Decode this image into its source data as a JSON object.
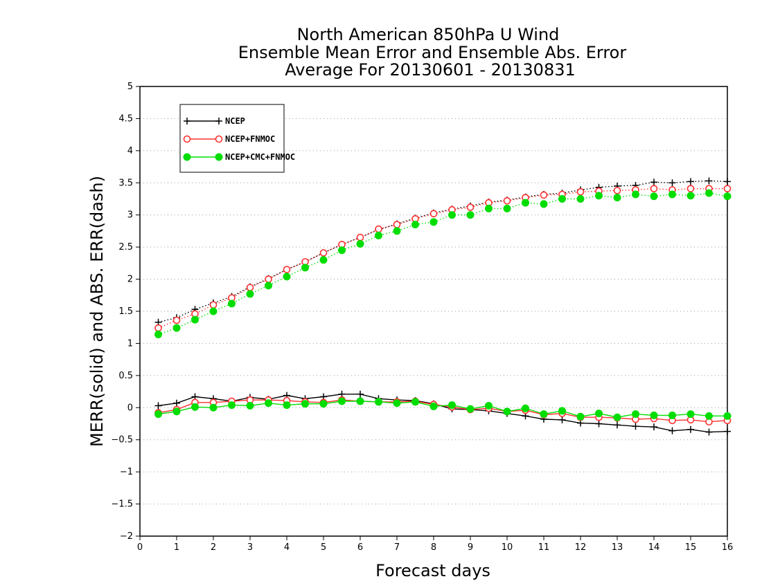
{
  "chart_data": {
    "type": "line",
    "title": [
      "North American 850hPa U Wind",
      "Ensemble Mean Error and Ensemble Abs. Error",
      "Average For 20130601 - 20130831"
    ],
    "xlabel": "Forecast days",
    "ylabel": "MERR(solid) and ABS. ERR(dash)",
    "xlim": [
      0,
      16
    ],
    "ylim": [
      -2,
      5
    ],
    "xticks": [
      "0",
      "1",
      "2",
      "3",
      "4",
      "5",
      "6",
      "7",
      "8",
      "9",
      "10",
      "11",
      "12",
      "13",
      "14",
      "15",
      "16"
    ],
    "yticks": [
      "−2",
      "−1.5",
      "−1",
      "−0.5",
      "0",
      "0.5",
      "1",
      "1.5",
      "2",
      "2.5",
      "3",
      "3.5",
      "4",
      "4.5",
      "5"
    ],
    "grid": "horizontal dotted",
    "legend_position": "top-left",
    "x": [
      0.5,
      1,
      1.5,
      2,
      2.5,
      3,
      3.5,
      4,
      4.5,
      5,
      5.5,
      6,
      6.5,
      7,
      7.5,
      8,
      8.5,
      9,
      9.5,
      10,
      10.5,
      11,
      11.5,
      12,
      12.5,
      13,
      13.5,
      14,
      14.5,
      15,
      15.5,
      16
    ],
    "series": [
      {
        "name": "NCEP",
        "color": "#000000",
        "marker": "plus",
        "abs_err": [
          1.33,
          1.4,
          1.53,
          1.63,
          1.73,
          1.88,
          2.01,
          2.15,
          2.27,
          2.41,
          2.54,
          2.65,
          2.77,
          2.86,
          2.95,
          3.03,
          3.09,
          3.14,
          3.2,
          3.23,
          3.28,
          3.32,
          3.34,
          3.39,
          3.43,
          3.45,
          3.46,
          3.51,
          3.5,
          3.52,
          3.53,
          3.52
        ],
        "mean_err": [
          0.03,
          0.07,
          0.17,
          0.14,
          0.1,
          0.16,
          0.13,
          0.19,
          0.14,
          0.17,
          0.21,
          0.21,
          0.14,
          0.12,
          0.11,
          0.06,
          -0.02,
          -0.03,
          -0.05,
          -0.09,
          -0.13,
          -0.18,
          -0.19,
          -0.24,
          -0.25,
          -0.27,
          -0.29,
          -0.3,
          -0.36,
          -0.34,
          -0.38,
          -0.37
        ]
      },
      {
        "name": "NCEP+FNMOC",
        "color": "#ff3030",
        "marker": "open-circle",
        "abs_err": [
          1.24,
          1.36,
          1.46,
          1.6,
          1.71,
          1.87,
          2.0,
          2.15,
          2.27,
          2.41,
          2.54,
          2.65,
          2.78,
          2.85,
          2.94,
          3.02,
          3.08,
          3.12,
          3.19,
          3.22,
          3.27,
          3.31,
          3.32,
          3.36,
          3.37,
          3.38,
          3.39,
          3.41,
          3.39,
          3.41,
          3.41,
          3.41
        ],
        "mean_err": [
          -0.08,
          -0.03,
          0.08,
          0.08,
          0.1,
          0.12,
          0.12,
          0.11,
          0.09,
          0.08,
          0.12,
          0.1,
          0.09,
          0.09,
          0.1,
          0.05,
          0.01,
          -0.03,
          -0.01,
          -0.06,
          -0.04,
          -0.11,
          -0.09,
          -0.15,
          -0.15,
          -0.16,
          -0.18,
          -0.17,
          -0.2,
          -0.19,
          -0.22,
          -0.2
        ]
      },
      {
        "name": "NCEP+CMC+FNMOC",
        "color": "#00dd00",
        "marker": "filled-circle",
        "abs_err": [
          1.14,
          1.24,
          1.37,
          1.5,
          1.62,
          1.77,
          1.9,
          2.04,
          2.18,
          2.3,
          2.45,
          2.55,
          2.68,
          2.75,
          2.85,
          2.89,
          3.0,
          3.0,
          3.1,
          3.1,
          3.19,
          3.17,
          3.25,
          3.25,
          3.3,
          3.27,
          3.32,
          3.29,
          3.32,
          3.3,
          3.34,
          3.29
        ],
        "mean_err": [
          -0.1,
          -0.06,
          0.01,
          0.0,
          0.04,
          0.03,
          0.07,
          0.04,
          0.06,
          0.06,
          0.1,
          0.1,
          0.09,
          0.07,
          0.09,
          0.02,
          0.04,
          -0.02,
          0.03,
          -0.06,
          -0.01,
          -0.1,
          -0.05,
          -0.14,
          -0.09,
          -0.15,
          -0.1,
          -0.12,
          -0.12,
          -0.1,
          -0.13,
          -0.13
        ]
      }
    ]
  }
}
